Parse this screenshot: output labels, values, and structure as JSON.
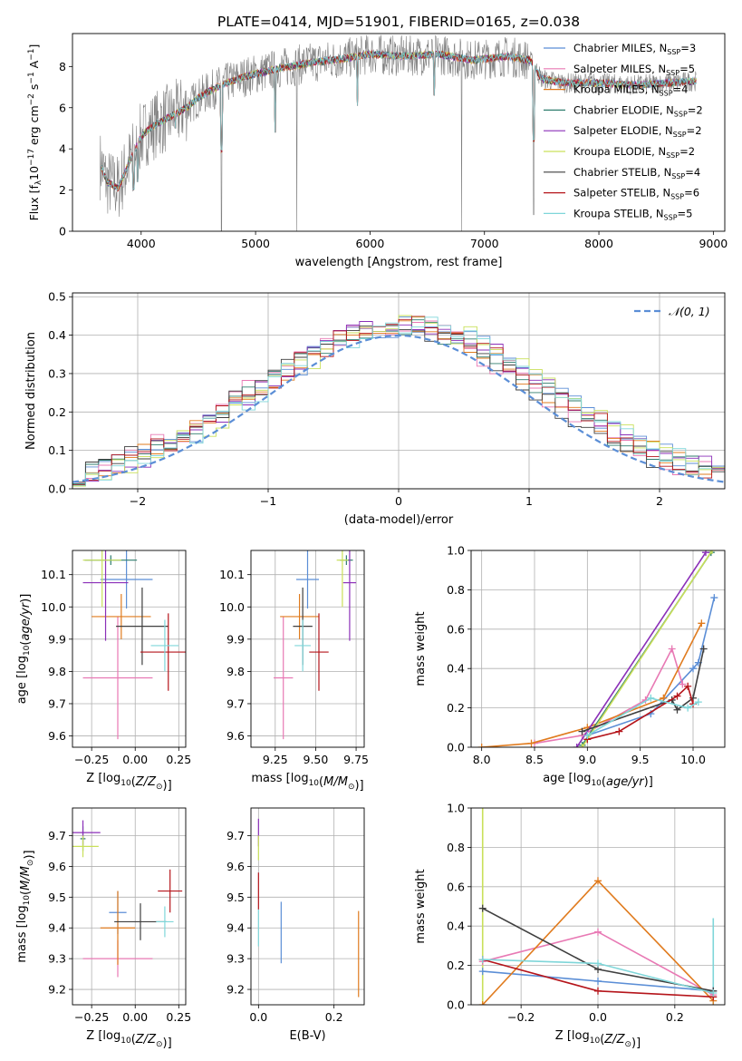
{
  "title": "PLATE=0414, MJD=51901, FIBERID=0165, z=0.038",
  "colors": {
    "Chabrier MILES": "#5b8ed6",
    "Salpeter MILES": "#e879b4",
    "Kroupa MILES": "#e07b1e",
    "Chabrier ELODIE": "#2f7d6e",
    "Salpeter ELODIE": "#8b2fb8",
    "Kroupa ELODIE": "#c9e05a",
    "Chabrier STELIB": "#3f3f3f",
    "Salpeter STELIB": "#b5151b",
    "Kroupa STELIB": "#7fd6d9",
    "data": "#808080",
    "normal": "#5b8ed6"
  },
  "chart_data": [
    {
      "id": "spectrum",
      "type": "line",
      "xlabel": "wavelength [Angstrom, rest frame]",
      "ylabel_text": "Flux [f",
      "ylim": [
        0,
        9.6
      ],
      "xlim": [
        3400,
        9100
      ],
      "xticks": [
        4000,
        5000,
        6000,
        7000,
        8000,
        9000
      ],
      "yticks": [
        0,
        2,
        4,
        6,
        8
      ],
      "continuum_x": [
        3650,
        3700,
        3800,
        3900,
        4000,
        4100,
        4200,
        4300,
        4400,
        4500,
        4700,
        4900,
        5200,
        5500,
        5800,
        6000,
        6300,
        6600,
        6900,
        7200,
        7400,
        7500,
        7700,
        8000,
        8300,
        8600,
        8850
      ],
      "continuum_y": [
        3.2,
        2.4,
        2.1,
        3.4,
        4.6,
        5.1,
        5.4,
        5.7,
        6.0,
        6.5,
        7.1,
        7.5,
        7.9,
        8.2,
        8.4,
        8.6,
        8.5,
        8.6,
        8.3,
        8.5,
        8.3,
        7.4,
        7.2,
        7.2,
        7.1,
        7.2,
        7.3
      ],
      "dips": [
        [
          4702,
          0.0
        ],
        [
          5172,
          4.8
        ],
        [
          5890,
          6.1
        ],
        [
          7430,
          0.8
        ],
        [
          3933,
          2.0
        ],
        [
          3968,
          2.4
        ],
        [
          4300,
          5.0
        ],
        [
          6560,
          6.6
        ]
      ],
      "legend_location": "upper right",
      "legend": [
        {
          "pre": "Chabrier MILES, N",
          "sub": "SSP",
          "post": "=3"
        },
        {
          "pre": "Salpeter MILES, N",
          "sub": "SSP",
          "post": "=5"
        },
        {
          "pre": "Kroupa MILES, N",
          "sub": "SSP",
          "post": "=4"
        },
        {
          "pre": "Chabrier ELODIE, N",
          "sub": "SSP",
          "post": "=2"
        },
        {
          "pre": "Salpeter ELODIE, N",
          "sub": "SSP",
          "post": "=2"
        },
        {
          "pre": "Kroupa ELODIE, N",
          "sub": "SSP",
          "post": "=2"
        },
        {
          "pre": "Chabrier STELIB, N",
          "sub": "SSP",
          "post": "=4"
        },
        {
          "pre": "Salpeter STELIB, N",
          "sub": "SSP",
          "post": "=6"
        },
        {
          "pre": "Kroupa STELIB, N",
          "sub": "SSP",
          "post": "=5"
        }
      ]
    },
    {
      "id": "residuals",
      "type": "histogram",
      "xlabel": "(data-model)/error",
      "ylabel": "Normed distribution",
      "xlim": [
        -2.5,
        2.5
      ],
      "ylim": [
        0,
        0.51
      ],
      "xticks": [
        -2,
        -1,
        0,
        1,
        2
      ],
      "yticks": [
        0.0,
        0.1,
        0.2,
        0.3,
        0.4,
        0.5
      ],
      "bin_width": 0.1,
      "normal_label": "𝒩(0, 1)",
      "grid": true
    },
    {
      "id": "age_vs_Z",
      "type": "errorbar",
      "xlabel": "Z [log10(Z/Z⊙)]",
      "ylabel": "age  [log10(age/yr)]",
      "xlim": [
        -0.36,
        0.29
      ],
      "ylim": [
        9.565,
        10.175
      ],
      "xticks": [
        -0.25,
        0.0,
        0.25
      ],
      "yticks": [
        9.6,
        9.7,
        9.8,
        9.9,
        10.0,
        10.1
      ],
      "points": [
        {
          "s": "Chabrier MILES",
          "x": -0.05,
          "xerr": 0.15,
          "y": 10.085,
          "yerr": 0.09
        },
        {
          "s": "Salpeter MILES",
          "x": -0.1,
          "xerr": 0.2,
          "y": 9.78,
          "yerr": 0.19
        },
        {
          "s": "Kroupa MILES",
          "x": -0.08,
          "xerr": 0.17,
          "y": 9.97,
          "yerr": 0.07
        },
        {
          "s": "Chabrier ELODIE",
          "x": -0.14,
          "xerr": 0.15,
          "y": 10.145,
          "yerr": 0.015
        },
        {
          "s": "Salpeter ELODIE",
          "x": -0.17,
          "xerr": 0.13,
          "y": 10.075,
          "yerr": 0.18
        },
        {
          "s": "Kroupa ELODIE",
          "x": -0.19,
          "xerr": 0.11,
          "y": 10.145,
          "yerr": 0.145
        },
        {
          "s": "Chabrier STELIB",
          "x": 0.04,
          "xerr": 0.15,
          "y": 9.94,
          "yerr": 0.12
        },
        {
          "s": "Salpeter STELIB",
          "x": 0.19,
          "xerr": 0.16,
          "y": 9.86,
          "yerr": 0.12
        },
        {
          "s": "Kroupa STELIB",
          "x": 0.17,
          "xerr": 0.08,
          "y": 9.88,
          "yerr": 0.08
        }
      ]
    },
    {
      "id": "age_vs_mass",
      "type": "errorbar",
      "xlabel": "mass [log10(M/M⊙)]",
      "ylabel": "",
      "xlim": [
        9.1,
        9.8
      ],
      "ylim": [
        9.565,
        10.175
      ],
      "xticks": [
        9.25,
        9.5,
        9.75
      ],
      "yticks": [
        9.6,
        9.7,
        9.8,
        9.9,
        10.0,
        10.1
      ],
      "points": [
        {
          "s": "Chabrier MILES",
          "x": 9.45,
          "xerr": 0.07,
          "y": 10.085,
          "yerr": 0.09
        },
        {
          "s": "Salpeter MILES",
          "x": 9.3,
          "xerr": 0.06,
          "y": 9.78,
          "yerr": 0.19
        },
        {
          "s": "Kroupa MILES",
          "x": 9.4,
          "xerr": 0.12,
          "y": 9.97,
          "yerr": 0.07
        },
        {
          "s": "Chabrier ELODIE",
          "x": 9.69,
          "xerr": 0.04,
          "y": 10.145,
          "yerr": 0.015
        },
        {
          "s": "Salpeter ELODIE",
          "x": 9.71,
          "xerr": 0.04,
          "y": 10.075,
          "yerr": 0.18
        },
        {
          "s": "Kroupa ELODIE",
          "x": 9.665,
          "xerr": 0.035,
          "y": 10.145,
          "yerr": 0.145
        },
        {
          "s": "Chabrier STELIB",
          "x": 9.42,
          "xerr": 0.06,
          "y": 9.94,
          "yerr": 0.12
        },
        {
          "s": "Salpeter STELIB",
          "x": 9.52,
          "xerr": 0.06,
          "y": 9.86,
          "yerr": 0.12
        },
        {
          "s": "Kroupa STELIB",
          "x": 9.42,
          "xerr": 0.05,
          "y": 9.88,
          "yerr": 0.08
        }
      ]
    },
    {
      "id": "mass_weight_vs_age",
      "type": "line",
      "xlabel": "age  [log10(age/yr)]",
      "ylabel": "mass weight",
      "xlim": [
        7.9,
        10.3
      ],
      "ylim": [
        0,
        1
      ],
      "xticks": [
        8.0,
        8.5,
        9.0,
        9.5,
        10.0
      ],
      "yticks": [
        0.0,
        0.2,
        0.4,
        0.6,
        0.8,
        1.0
      ],
      "series": [
        {
          "s": "Chabrier MILES",
          "x": [
            9.0,
            9.6,
            10.0,
            10.05,
            10.2
          ],
          "y": [
            0.06,
            0.17,
            0.4,
            0.43,
            0.76
          ]
        },
        {
          "s": "Salpeter MILES",
          "x": [
            8.5,
            8.95,
            9.55,
            9.8,
            9.9
          ],
          "y": [
            0.02,
            0.06,
            0.24,
            0.5,
            0.32
          ]
        },
        {
          "s": "Kroupa MILES",
          "x": [
            8.0,
            8.47,
            9.0,
            9.72,
            10.08
          ],
          "y": [
            0.0,
            0.02,
            0.1,
            0.25,
            0.63
          ]
        },
        {
          "s": "Chabrier ELODIE",
          "x": [
            8.95,
            10.17
          ],
          "y": [
            0.01,
            0.99
          ]
        },
        {
          "s": "Salpeter ELODIE",
          "x": [
            8.9,
            10.12
          ],
          "y": [
            0.0,
            0.99
          ]
        },
        {
          "s": "Kroupa ELODIE",
          "x": [
            8.95,
            10.18
          ],
          "y": [
            0.0,
            1.0
          ]
        },
        {
          "s": "Chabrier STELIB",
          "x": [
            8.95,
            9.8,
            9.85,
            10.0,
            10.1
          ],
          "y": [
            0.08,
            0.24,
            0.19,
            0.25,
            0.5
          ]
        },
        {
          "s": "Salpeter STELIB",
          "x": [
            9.0,
            9.3,
            9.85,
            9.95,
            10.0
          ],
          "y": [
            0.04,
            0.08,
            0.26,
            0.31,
            0.22
          ]
        },
        {
          "s": "Kroupa STELIB",
          "x": [
            9.0,
            9.6,
            9.95,
            10.05
          ],
          "y": [
            0.06,
            0.25,
            0.2,
            0.23
          ]
        }
      ]
    },
    {
      "id": "mass_vs_Z",
      "type": "errorbar",
      "xlabel": "Z [log10(Z/Z⊙)]",
      "ylabel": "mass [log10(M/M⊙)]",
      "xlim": [
        -0.36,
        0.29
      ],
      "ylim": [
        9.15,
        9.79
      ],
      "xticks": [
        -0.25,
        0.0,
        0.25
      ],
      "yticks": [
        9.2,
        9.3,
        9.4,
        9.5,
        9.6,
        9.7
      ],
      "points": [
        {
          "s": "Chabrier MILES",
          "x": -0.1,
          "xerr": 0.05,
          "y": 9.45,
          "yerr": 0.07
        },
        {
          "s": "Salpeter MILES",
          "x": -0.1,
          "xerr": 0.2,
          "y": 9.3,
          "yerr": 0.06
        },
        {
          "s": "Kroupa MILES",
          "x": -0.1,
          "xerr": 0.1,
          "y": 9.4,
          "yerr": 0.12
        },
        {
          "s": "Chabrier ELODIE",
          "x": -0.3,
          "xerr": 0.015,
          "y": 9.69,
          "yerr": 0.04
        },
        {
          "s": "Salpeter ELODIE",
          "x": -0.3,
          "xerr": 0.1,
          "y": 9.71,
          "yerr": 0.04
        },
        {
          "s": "Kroupa ELODIE",
          "x": -0.3,
          "xerr": 0.09,
          "y": 9.665,
          "yerr": 0.035
        },
        {
          "s": "Chabrier STELIB",
          "x": 0.03,
          "xerr": 0.15,
          "y": 9.42,
          "yerr": 0.06
        },
        {
          "s": "Salpeter STELIB",
          "x": 0.2,
          "xerr": 0.07,
          "y": 9.52,
          "yerr": 0.07
        },
        {
          "s": "Kroupa STELIB",
          "x": 0.17,
          "xerr": 0.05,
          "y": 9.42,
          "yerr": 0.05
        }
      ]
    },
    {
      "id": "mass_vs_EBV",
      "type": "errorbar",
      "xlabel": "E(B-V)",
      "ylabel": "",
      "xlim": [
        -0.02,
        0.28
      ],
      "ylim": [
        9.15,
        9.79
      ],
      "xticks": [
        0.0,
        0.2
      ],
      "yticks": [
        9.2,
        9.3,
        9.4,
        9.5,
        9.6,
        9.7
      ],
      "points": [
        {
          "s": "Chabrier MILES",
          "x": 0.06,
          "xerr": 0,
          "y": 9.385,
          "yerr": 0.1
        },
        {
          "s": "Kroupa MILES",
          "x": 0.265,
          "xerr": 0,
          "y": 9.315,
          "yerr": 0.14
        },
        {
          "s": "Salpeter ELODIE",
          "x": 0.0,
          "xerr": 0,
          "y": 9.71,
          "yerr": 0.045
        },
        {
          "s": "Kroupa ELODIE",
          "x": 0.0,
          "xerr": 0,
          "y": 9.66,
          "yerr": 0.04
        },
        {
          "s": "Salpeter STELIB",
          "x": 0.0,
          "xerr": 0,
          "y": 9.52,
          "yerr": 0.06
        },
        {
          "s": "Kroupa STELIB",
          "x": 0.0,
          "xerr": 0,
          "y": 9.4,
          "yerr": 0.06
        }
      ]
    },
    {
      "id": "mass_weight_vs_Z",
      "type": "line",
      "xlabel": "Z [log10(Z/Z⊙)]",
      "ylabel": "mass weight",
      "xlim": [
        -0.33,
        0.33
      ],
      "ylim": [
        0,
        1
      ],
      "xticks": [
        -0.2,
        0.0,
        0.2
      ],
      "yticks": [
        0.0,
        0.2,
        0.4,
        0.6,
        0.8,
        1.0
      ],
      "series": [
        {
          "s": "Chabrier MILES",
          "x": [
            -0.3,
            0.0,
            0.3
          ],
          "y": [
            0.17,
            0.12,
            0.07
          ]
        },
        {
          "s": "Salpeter MILES",
          "x": [
            -0.3,
            0.0,
            0.3
          ],
          "y": [
            0.22,
            0.37,
            0.05
          ]
        },
        {
          "s": "Kroupa MILES",
          "x": [
            -0.3,
            0.0,
            0.3
          ],
          "y": [
            0.0,
            0.63,
            0.02
          ]
        },
        {
          "s": "Chabrier STELIB",
          "x": [
            -0.3,
            0.0,
            0.3
          ],
          "y": [
            0.49,
            0.18,
            0.07
          ]
        },
        {
          "s": "Salpeter STELIB",
          "x": [
            -0.3,
            0.0,
            0.3
          ],
          "y": [
            0.23,
            0.07,
            0.04
          ]
        },
        {
          "s": "Kroupa STELIB",
          "x": [
            -0.3,
            0.0,
            0.3
          ],
          "y": [
            0.23,
            0.21,
            0.06
          ]
        }
      ],
      "vlines": [
        {
          "s": "Kroupa ELODIE",
          "x": -0.3,
          "y0": 0.0,
          "y1": 1.0
        },
        {
          "s": "Kroupa STELIB",
          "x": 0.3,
          "y0": 0.0,
          "y1": 0.44
        }
      ]
    }
  ]
}
